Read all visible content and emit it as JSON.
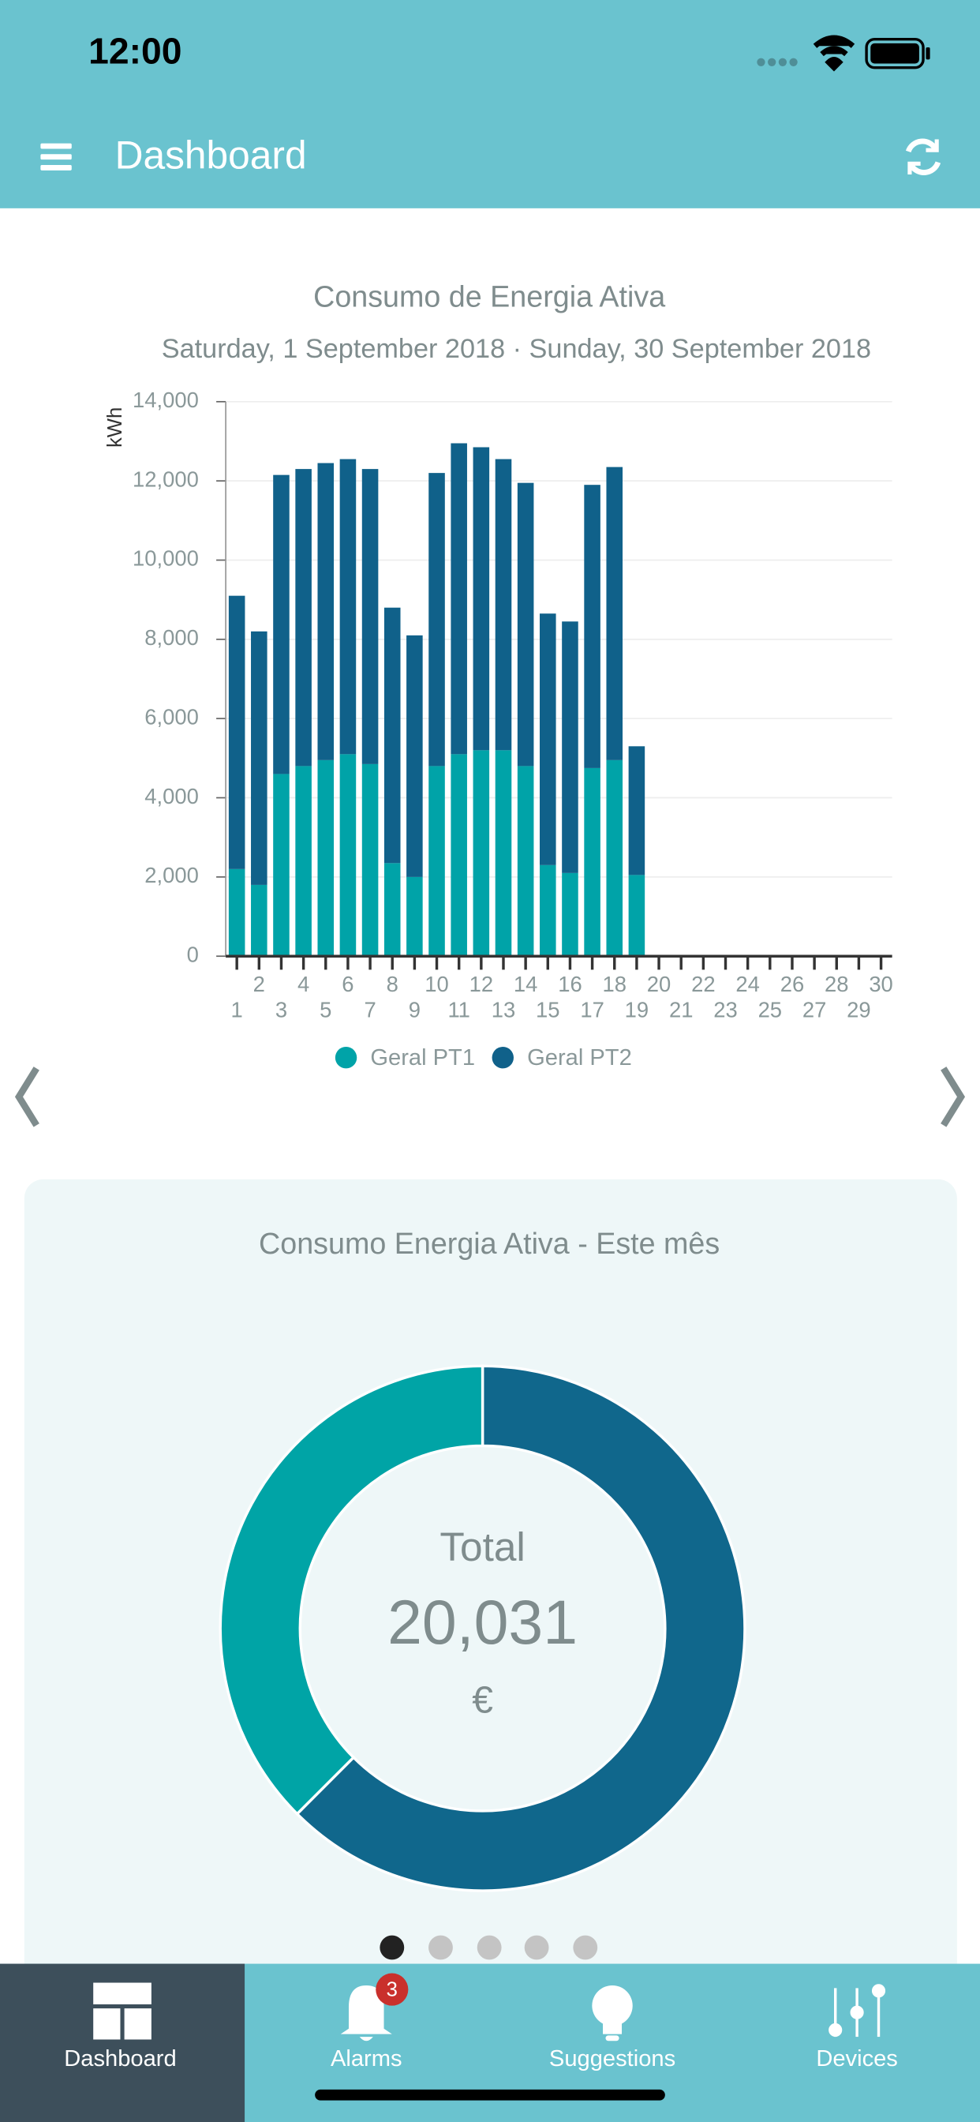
{
  "status_bar": {
    "time": "12:00"
  },
  "header": {
    "title": "Dashboard"
  },
  "chart_data": [
    {
      "type": "bar",
      "title": "Consumo de Energia Ativa",
      "subtitle": "Saturday, 1 September 2018 · Sunday, 30 September 2018",
      "y_label": "kWh",
      "categories": [
        1,
        2,
        3,
        4,
        5,
        6,
        7,
        8,
        9,
        10,
        11,
        12,
        13,
        14,
        15,
        16,
        17,
        18,
        19,
        20,
        21,
        22,
        23,
        24,
        25,
        26,
        27,
        28,
        29,
        30
      ],
      "series": [
        {
          "name": "Geral PT1",
          "color": "#00a3a8",
          "values": [
            2200,
            1800,
            4600,
            4800,
            4950,
            5100,
            4850,
            2350,
            2000,
            4800,
            5100,
            5200,
            5200,
            4800,
            2300,
            2100,
            4750,
            4950,
            2050,
            null,
            null,
            null,
            null,
            null,
            null,
            null,
            null,
            null,
            null,
            null
          ]
        },
        {
          "name": "Geral PT2",
          "color": "#10618a",
          "values": [
            6900,
            6400,
            7550,
            7500,
            7500,
            7450,
            7450,
            6450,
            6100,
            7400,
            7850,
            7650,
            7350,
            7150,
            6350,
            6350,
            7150,
            7400,
            3250,
            null,
            null,
            null,
            null,
            null,
            null,
            null,
            null,
            null,
            null,
            null
          ]
        }
      ],
      "ylim": [
        0,
        14000
      ],
      "yticks": [
        0,
        {
          "value": 2000,
          "label": "2,000"
        },
        {
          "value": 4000,
          "label": "4,000"
        },
        {
          "value": 6000,
          "label": "6,000"
        },
        {
          "value": 8000,
          "label": "8,000"
        },
        {
          "value": 10000,
          "label": "10,000"
        },
        {
          "value": 12000,
          "label": "12,000"
        },
        {
          "value": 14000,
          "label": "14,000"
        }
      ],
      "grid": true,
      "legend": "bottom",
      "stacked": true
    },
    {
      "type": "pie",
      "title": "Consumo Energia Ativa - Este mês",
      "donut": true,
      "values": [
        12500,
        7500
      ],
      "colors": [
        "#10678c",
        "#00a4a6"
      ],
      "center_label": "Total",
      "total": "20,031",
      "unit": "€"
    }
  ],
  "tab_bar": {
    "tabs": [
      {
        "label": "Dashboard"
      },
      {
        "label": "Alarms",
        "badge": "3"
      },
      {
        "label": "Suggestions"
      },
      {
        "label": "Devices"
      }
    ]
  }
}
